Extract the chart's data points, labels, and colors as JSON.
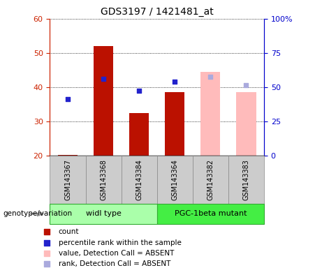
{
  "title": "GDS3197 / 1421481_at",
  "samples": [
    "GSM143367",
    "GSM143368",
    "GSM143384",
    "GSM143364",
    "GSM143382",
    "GSM143383"
  ],
  "group_labels": [
    "widl type",
    "PGC-1beta mutant"
  ],
  "group_colors": [
    "#aaffaa",
    "#44ee44"
  ],
  "ylim_left": [
    20,
    60
  ],
  "ylim_right": [
    0,
    100
  ],
  "yticks_left": [
    20,
    30,
    40,
    50,
    60
  ],
  "yticks_right": [
    0,
    25,
    50,
    75,
    100
  ],
  "ytick_labels_right": [
    "0",
    "25",
    "50",
    "75",
    "100%"
  ],
  "bar_color_present": "#bb1100",
  "bar_color_absent": "#ffbbbb",
  "dot_color_present": "#2222cc",
  "dot_color_absent": "#aaaadd",
  "count_values": [
    20.2,
    52.0,
    32.5,
    38.5,
    44.5,
    38.5
  ],
  "rank_values": [
    36.5,
    42.5,
    39.0,
    41.5,
    43.0,
    40.5
  ],
  "detection_absent": [
    false,
    false,
    false,
    false,
    true,
    true
  ],
  "bar_baseline": 20,
  "left_tick_color": "#cc2200",
  "right_tick_color": "#0000cc",
  "genotype_label": "genotype/variation",
  "legend_items": [
    {
      "color": "#bb1100",
      "label": "count"
    },
    {
      "color": "#2222cc",
      "label": "percentile rank within the sample"
    },
    {
      "color": "#ffbbbb",
      "label": "value, Detection Call = ABSENT"
    },
    {
      "color": "#aaaadd",
      "label": "rank, Detection Call = ABSENT"
    }
  ]
}
